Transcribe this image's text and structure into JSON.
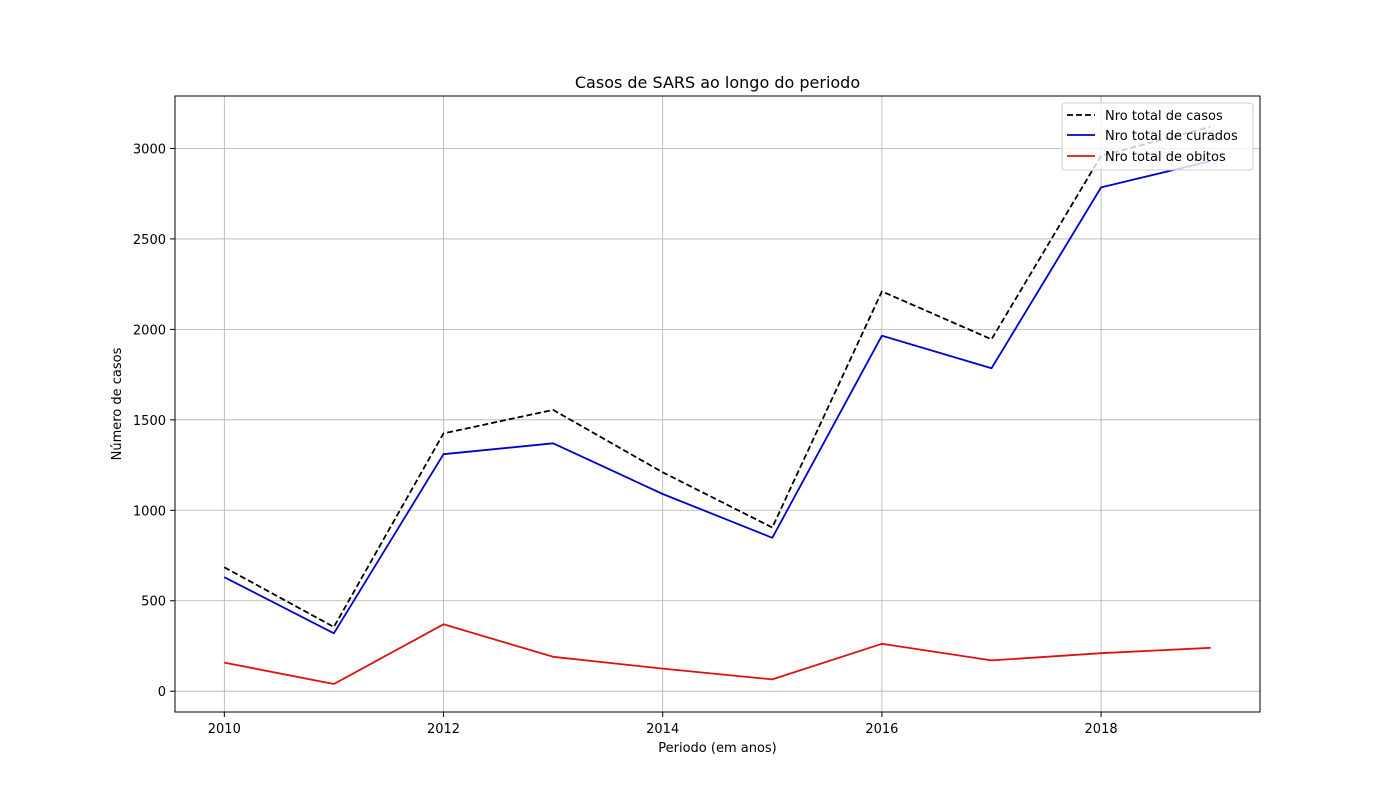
{
  "chart_data": {
    "type": "line",
    "title": "Casos de SARS ao longo do periodo",
    "xlabel": "Periodo (em anos)",
    "ylabel": "Número de casos",
    "x": [
      2010,
      2011,
      2012,
      2013,
      2014,
      2015,
      2016,
      2017,
      2018,
      2019
    ],
    "xlim": [
      2009.55,
      2019.45
    ],
    "ylim": [
      -115,
      3290
    ],
    "xticks": [
      2010,
      2012,
      2014,
      2016,
      2018
    ],
    "yticks": [
      0,
      500,
      1000,
      1500,
      2000,
      2500,
      3000
    ],
    "grid": true,
    "legend_position": "upper right",
    "series": [
      {
        "name": "Nro total de casos",
        "color": "#000000",
        "linestyle": "dashed",
        "values": [
          685,
          355,
          1425,
          1555,
          1210,
          905,
          2210,
          1945,
          2960,
          3120
        ]
      },
      {
        "name": "Nro total de curados",
        "color": "#0000cc",
        "linestyle": "solid",
        "values": [
          630,
          320,
          1310,
          1370,
          1090,
          848,
          1965,
          1785,
          2785,
          2930
        ]
      },
      {
        "name": "Nro total de obitos",
        "color": "#dd1111",
        "linestyle": "solid",
        "values": [
          158,
          40,
          370,
          190,
          125,
          65,
          262,
          170,
          210,
          240
        ]
      }
    ]
  }
}
